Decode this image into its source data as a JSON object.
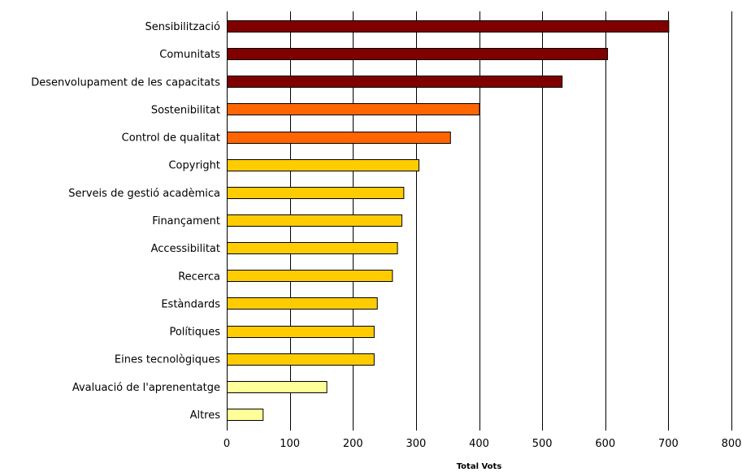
{
  "chart_data": {
    "type": "bar",
    "orientation": "horizontal",
    "categories": [
      "Sensibilització",
      "Comunitats",
      "Desenvolupament de les capacitats",
      "Sostenibilitat",
      "Control de qualitat",
      "Copyright",
      "Serveis de gestió acadèmica",
      "Finançament",
      "Accessibilitat",
      "Recerca",
      "Estàndards",
      "Polítiques",
      "Eines tecnològiques",
      "Avaluació de l'aprenentatge",
      "Altres"
    ],
    "values": [
      700,
      603,
      531,
      400,
      354,
      304,
      280,
      277,
      270,
      262,
      238,
      233,
      233,
      158,
      57
    ],
    "bar_colors": [
      "#800000",
      "#800000",
      "#800000",
      "#ff6600",
      "#ff6600",
      "#ffcc00",
      "#ffcc00",
      "#ffcc00",
      "#ffcc00",
      "#ffcc00",
      "#ffcc00",
      "#ffcc00",
      "#ffcc00",
      "#ffff99",
      "#ffff99"
    ],
    "xlabel": "Total Vots",
    "ylabel": "",
    "title": "",
    "xlim": [
      0,
      800
    ],
    "xticks": [
      0,
      100,
      200,
      300,
      400,
      500,
      600,
      700,
      800
    ],
    "grid": "vertical lines at major ticks",
    "legend": "none"
  }
}
